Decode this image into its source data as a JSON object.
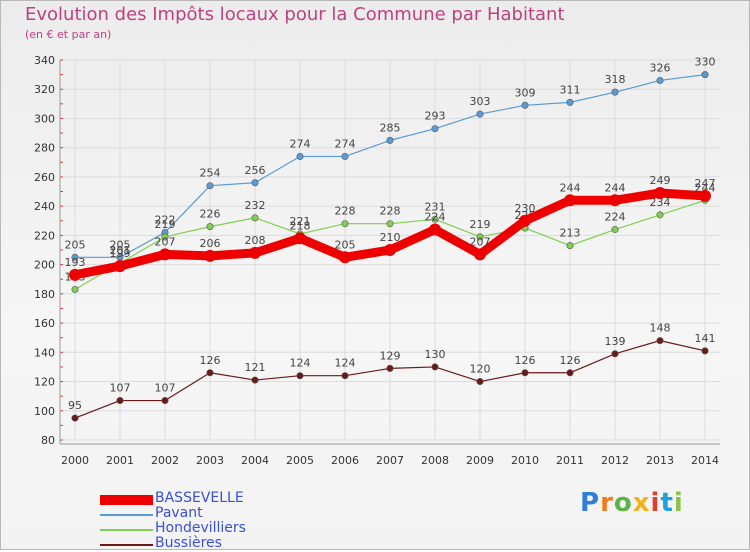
{
  "header": {
    "title": "Evolution des Impôts locaux pour la Commune par Habitant",
    "subtitle": "(en € et par an)"
  },
  "brand": {
    "logo_text": "Proxiti",
    "logo_colors": [
      "#2f7fd8",
      "#f07c1c",
      "#5ab44a",
      "#f2b21a",
      "#e0412c",
      "#1aa3d8",
      "#8bc34a"
    ]
  },
  "chart_data": {
    "type": "line",
    "x": [
      2000,
      2001,
      2002,
      2003,
      2004,
      2005,
      2006,
      2007,
      2008,
      2009,
      2010,
      2011,
      2012,
      2013,
      2014
    ],
    "ylim": [
      80,
      340
    ],
    "yticks": [
      80,
      100,
      120,
      140,
      160,
      180,
      200,
      220,
      240,
      260,
      280,
      300,
      320,
      340
    ],
    "grid": true,
    "legend_position": "bottom-left",
    "series": [
      {
        "name": "BASSEVELLE",
        "color": "#ee0000",
        "emphasis": true,
        "values": [
          193,
          199,
          207,
          206,
          208,
          218,
          205,
          210,
          224,
          207,
          230,
          244,
          244,
          249,
          247
        ],
        "labels": [
          "193",
          "199",
          "207",
          "206",
          "208",
          "218",
          "205",
          "210",
          "224",
          "207",
          "230",
          "244",
          "244",
          "249",
          "247"
        ]
      },
      {
        "name": "Pavant",
        "color": "#5b9bd5",
        "values": [
          205,
          205,
          222,
          254,
          256,
          274,
          274,
          285,
          293,
          303,
          309,
          311,
          318,
          326,
          330
        ],
        "labels": [
          "205",
          "205",
          "222",
          "254",
          "256",
          "274",
          "274",
          "285",
          "293",
          "303",
          "309",
          "311",
          "318",
          "326",
          "330"
        ]
      },
      {
        "name": "Hondevilliers",
        "color": "#7fd050",
        "values": [
          183,
          201,
          219,
          226,
          232,
          221,
          228,
          228,
          231,
          219,
          225,
          213,
          224,
          234,
          244
        ],
        "labels": [
          "183",
          "201",
          "219",
          "226",
          "232",
          "221",
          "228",
          "228",
          "231",
          "219",
          "225",
          "213",
          "224",
          "234",
          "244"
        ]
      },
      {
        "name": "Bussières",
        "color": "#6b1a1a",
        "values": [
          95,
          107,
          107,
          126,
          121,
          124,
          124,
          129,
          130,
          120,
          126,
          126,
          139,
          148,
          141
        ],
        "labels": [
          "95",
          "107",
          "107",
          "126",
          "121",
          "124",
          "124",
          "129",
          "130",
          "120",
          "126",
          "126",
          "139",
          "148",
          "141"
        ]
      }
    ]
  }
}
